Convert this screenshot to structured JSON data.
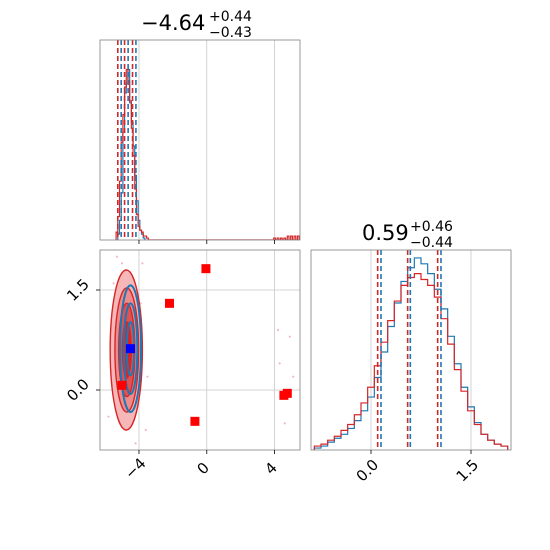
{
  "chart_data": {
    "type": "corner",
    "grid": true,
    "colors": {
      "series_a": "#1f77b4",
      "series_b": "#d62728",
      "frame": "#808080",
      "grid": "#c8c8c8",
      "marker_blue": "#0000ff",
      "marker_red": "#ff0000"
    },
    "param1": {
      "title": {
        "main": "−4.64",
        "sup": "+0.44",
        "sub": "−0.43"
      },
      "range": [
        -6.3,
        5.5
      ],
      "ticks": [
        -4,
        0,
        4
      ],
      "tick_labels": [
        "−4",
        "0",
        "4"
      ],
      "quantiles_a": [
        -5.05,
        -4.64,
        -4.18
      ],
      "quantiles_b": [
        -5.25,
        -4.85,
        -4.38
      ],
      "hist_a": {
        "x": [
          -5.2,
          -5.1,
          -5.0,
          -4.9,
          -4.8,
          -4.7,
          -4.6,
          -4.5,
          -4.4,
          -4.3,
          -4.2,
          -4.1,
          -4.0,
          -3.9,
          -3.8,
          -3.7
        ],
        "y": [
          0.03,
          0.1,
          0.24,
          0.55,
          0.75,
          0.8,
          0.87,
          0.7,
          0.6,
          0.48,
          0.33,
          0.2,
          0.1,
          0.05,
          0.03,
          0.01
        ]
      },
      "hist_b": {
        "x": [
          -5.3,
          -5.2,
          -5.1,
          -5.0,
          -4.9,
          -4.8,
          -4.7,
          -4.6,
          -4.5,
          -4.4,
          -4.3,
          -4.2,
          -4.1,
          -4.0,
          -3.9,
          -3.8,
          -3.7,
          -3.6,
          -3.5,
          4.0,
          4.2,
          4.4,
          4.6,
          4.8,
          5.0,
          5.2,
          5.4
        ],
        "y": [
          0.04,
          0.12,
          0.3,
          0.5,
          0.64,
          0.78,
          0.87,
          0.81,
          0.71,
          0.57,
          0.43,
          0.26,
          0.13,
          0.07,
          0.05,
          0.04,
          0.02,
          0.02,
          0.01,
          0.01,
          0.01,
          0.01,
          0.01,
          0.02,
          0.02,
          0.02,
          0.02
        ]
      }
    },
    "param2": {
      "title": {
        "main": "0.59",
        "sup": "+0.46",
        "sub": "−0.44"
      },
      "range": [
        -0.9,
        2.1
      ],
      "ticks": [
        0.0,
        1.5
      ],
      "tick_labels": [
        "0.0",
        "1.5"
      ],
      "quantiles_a": [
        0.15,
        0.59,
        1.05
      ],
      "quantiles_b": [
        0.1,
        0.55,
        1.0
      ],
      "hist_a": {
        "x": [
          -0.8,
          -0.7,
          -0.6,
          -0.5,
          -0.4,
          -0.3,
          -0.2,
          -0.1,
          0.0,
          0.1,
          0.2,
          0.3,
          0.4,
          0.5,
          0.6,
          0.7,
          0.8,
          0.9,
          1.0,
          1.1,
          1.2,
          1.3,
          1.4,
          1.5,
          1.6,
          1.7,
          1.8,
          1.9,
          2.0
        ],
        "y": [
          0.01,
          0.02,
          0.04,
          0.06,
          0.08,
          0.11,
          0.15,
          0.2,
          0.27,
          0.37,
          0.5,
          0.63,
          0.75,
          0.86,
          0.93,
          0.98,
          0.95,
          0.9,
          0.82,
          0.72,
          0.58,
          0.44,
          0.32,
          0.22,
          0.14,
          0.08,
          0.05,
          0.03,
          0.02
        ]
      },
      "hist_b": {
        "x": [
          -0.8,
          -0.7,
          -0.6,
          -0.5,
          -0.4,
          -0.3,
          -0.2,
          -0.1,
          0.0,
          0.1,
          0.2,
          0.3,
          0.4,
          0.5,
          0.6,
          0.7,
          0.8,
          0.9,
          1.0,
          1.1,
          1.2,
          1.3,
          1.4,
          1.5,
          1.6,
          1.7,
          1.8,
          1.9,
          2.0
        ],
        "y": [
          0.02,
          0.03,
          0.05,
          0.07,
          0.1,
          0.13,
          0.18,
          0.24,
          0.32,
          0.43,
          0.55,
          0.66,
          0.76,
          0.84,
          0.88,
          0.9,
          0.87,
          0.84,
          0.78,
          0.67,
          0.54,
          0.41,
          0.3,
          0.2,
          0.13,
          0.08,
          0.05,
          0.03,
          0.02
        ]
      }
    },
    "joint": {
      "contours_b_fill": [
        {
          "cx": -4.75,
          "cy": 0.6,
          "rx": 0.95,
          "ry": 1.2,
          "color": "#f5b7b7"
        },
        {
          "cx": -4.72,
          "cy": 0.6,
          "rx": 0.7,
          "ry": 0.93,
          "color": "#ec8c8c"
        },
        {
          "cx": -4.72,
          "cy": 0.6,
          "rx": 0.48,
          "ry": 0.7,
          "color": "#df5252"
        },
        {
          "cx": -4.72,
          "cy": 0.6,
          "rx": 0.26,
          "ry": 0.42,
          "color": "#d62728"
        }
      ],
      "contours_a": [
        {
          "cx": -4.5,
          "cy": 0.62,
          "rx": 0.62,
          "ry": 0.95
        },
        {
          "cx": -4.5,
          "cy": 0.62,
          "rx": 0.4,
          "ry": 0.68
        },
        {
          "cx": -4.5,
          "cy": 0.62,
          "rx": 0.22,
          "ry": 0.4
        }
      ],
      "points_red": [
        {
          "x": -0.05,
          "y": 1.82
        },
        {
          "x": -2.2,
          "y": 1.3
        },
        {
          "x": -5.0,
          "y": 0.07
        },
        {
          "x": -0.7,
          "y": -0.47
        },
        {
          "x": 4.55,
          "y": -0.08
        },
        {
          "x": 4.75,
          "y": -0.05
        }
      ],
      "point_blue": {
        "x": -4.5,
        "y": 0.62
      },
      "scatter_faint": [
        {
          "x": -5.5,
          "y": 1.6
        },
        {
          "x": -3.8,
          "y": 1.9
        },
        {
          "x": -5.8,
          "y": -0.4
        },
        {
          "x": -3.6,
          "y": -0.6
        },
        {
          "x": -5.3,
          "y": 2.0
        },
        {
          "x": -3.9,
          "y": 1.3
        },
        {
          "x": 4.3,
          "y": 0.4
        },
        {
          "x": 4.9,
          "y": 0.8
        },
        {
          "x": 4.6,
          "y": -0.5
        },
        {
          "x": 5.1,
          "y": 0.2
        },
        {
          "x": 4.2,
          "y": 0.9
        },
        {
          "x": -5.6,
          "y": 0.9
        },
        {
          "x": -3.5,
          "y": 0.2
        },
        {
          "x": -4.2,
          "y": -0.8
        },
        {
          "x": -5.0,
          "y": 1.9
        }
      ]
    }
  }
}
